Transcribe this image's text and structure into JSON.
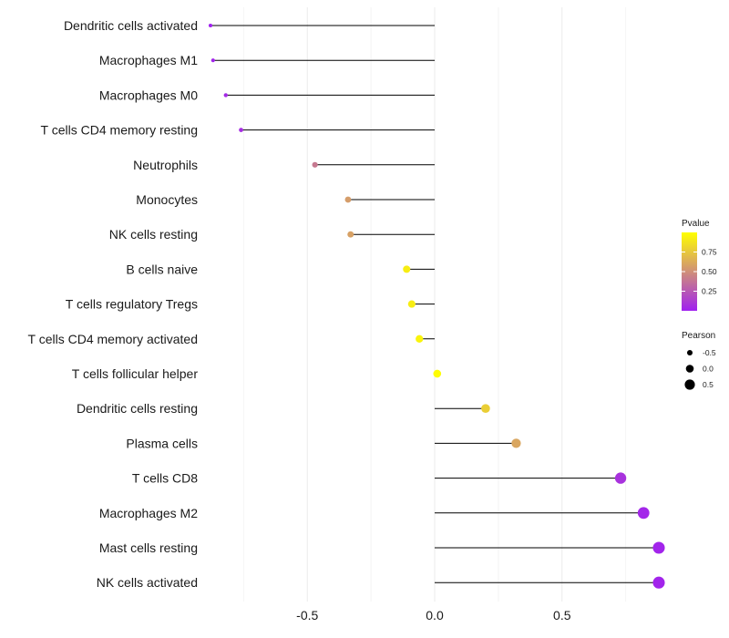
{
  "chart_data": {
    "type": "lollipop",
    "title": "",
    "xlabel": "",
    "ylabel": "",
    "xlim": [
      -0.88,
      0.88
    ],
    "xticks": [
      -0.5,
      0.0,
      0.5
    ],
    "xtick_labels": [
      "-0.5",
      "0.0",
      "0.5"
    ],
    "grid": true,
    "categories": [
      "Dendritic cells activated",
      "Macrophages M1",
      "Macrophages M0",
      "T cells CD4 memory resting",
      "Neutrophils",
      "Monocytes",
      "NK cells resting",
      "B cells naive",
      "T cells regulatory  Tregs ",
      "T cells CD4 memory activated",
      "T cells follicular helper",
      "Dendritic cells resting",
      "Plasma cells",
      "T cells CD8",
      "Macrophages M2",
      "Mast cells resting",
      "NK cells activated"
    ],
    "pearson": [
      -0.88,
      -0.87,
      -0.82,
      -0.76,
      -0.47,
      -0.34,
      -0.33,
      -0.11,
      -0.09,
      -0.06,
      0.01,
      0.2,
      0.32,
      0.73,
      0.82,
      0.88,
      0.88
    ],
    "pvalue": [
      0.01,
      0.02,
      0.04,
      0.06,
      0.4,
      0.56,
      0.58,
      0.92,
      0.92,
      0.95,
      0.99,
      0.78,
      0.6,
      0.08,
      0.03,
      0.02,
      0.02
    ],
    "legends": {
      "color": {
        "title": "Pvalue",
        "ticks": [
          0.25,
          0.5,
          0.75
        ],
        "tick_labels": [
          "0.25",
          "0.50",
          "0.75"
        ],
        "low_color": "#a020f0",
        "high_color": "#ffff00",
        "placement": "right"
      },
      "size": {
        "title": "Pearson",
        "values": [
          -0.5,
          0.0,
          0.5
        ],
        "labels": [
          "-0.5",
          "0.0",
          "0.5"
        ],
        "placement": "right"
      }
    }
  }
}
